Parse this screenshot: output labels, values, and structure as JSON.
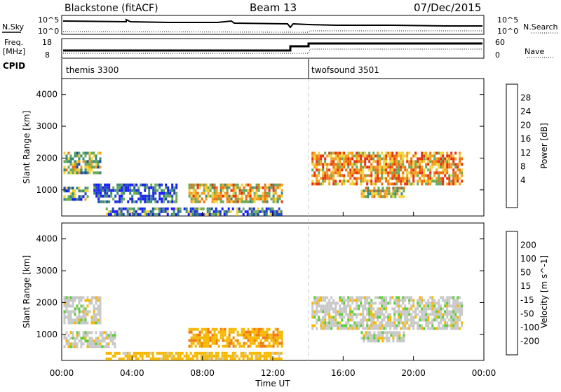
{
  "header": {
    "station": "Blackstone (fitACF)",
    "beam": "Beam 13",
    "date": "07/Dec/2015"
  },
  "summary": {
    "nsky_label": "N.Sky",
    "nsearch_label": "N.Search",
    "left_ticks": [
      "10^5",
      "10^0"
    ],
    "right_ticks": [
      "10^5",
      "10^0"
    ],
    "freq_label_1": "Freq.",
    "freq_label_2": "[MHz]",
    "freq_ticks": [
      "18",
      "8"
    ],
    "nave_label": "Nave",
    "nave_ticks": [
      "60",
      "0"
    ],
    "cpid_label": "CPID",
    "cpid_1": "themis 3300",
    "cpid_2": "twofsound 3501"
  },
  "colors": {
    "power_scale": [
      "#1a1aff",
      "#2048b8",
      "#3a8a7a",
      "#6aaa5a",
      "#f2d43a",
      "#f2a020",
      "#ee7010",
      "#e83010",
      "#d80000"
    ],
    "velocity_scale": [
      "#1a1aff",
      "#2048b8",
      "#3a8a5a",
      "#5ccc3a",
      "#c8c8c8",
      "#f5b800",
      "#f07a10",
      "#e85010",
      "#e00000"
    ]
  },
  "chart_data": [
    {
      "type": "heatmap",
      "title": "Power",
      "ylabel": "Slant Range [km]",
      "xlabel": "Time UT",
      "colorbar_label": "Power [dB]",
      "colorbar_ticks": [
        "28",
        "24",
        "20",
        "16",
        "12",
        "8",
        "4"
      ],
      "x_ticks": [
        "00:00",
        "04:00",
        "08:00",
        "12:00",
        "16:00",
        "20:00",
        "00:00"
      ],
      "y_ticks": [
        "4000",
        "3000",
        "2000",
        "1000"
      ],
      "ylim": [
        180,
        4500
      ],
      "xlim_hours": [
        0,
        24
      ],
      "regions": [
        {
          "t0": 0.1,
          "t1": 2.2,
          "r0": 1500,
          "r1": 2200,
          "value": 14
        },
        {
          "t0": 0.1,
          "t1": 1.5,
          "r0": 700,
          "r1": 1100,
          "value": 10
        },
        {
          "t0": 1.8,
          "t1": 6.5,
          "r0": 600,
          "r1": 1200,
          "value": 6
        },
        {
          "t0": 2.5,
          "t1": 12.5,
          "r0": 200,
          "r1": 450,
          "value": 8
        },
        {
          "t0": 7.2,
          "t1": 12.5,
          "r0": 650,
          "r1": 1200,
          "value": 18
        },
        {
          "t0": 14.2,
          "t1": 22.8,
          "r0": 1200,
          "r1": 2200,
          "value": 20
        },
        {
          "t0": 17.0,
          "t1": 19.5,
          "r0": 800,
          "r1": 1100,
          "value": 16
        }
      ]
    },
    {
      "type": "heatmap",
      "title": "Velocity",
      "ylabel": "Slant Range [km]",
      "xlabel": "Time UT",
      "colorbar_label": "Velocity [m s^-1]",
      "colorbar_ticks": [
        "200",
        "100",
        "50",
        "15",
        "-15",
        "-50",
        "-100",
        "-200"
      ],
      "x_ticks": [
        "00:00",
        "04:00",
        "08:00",
        "12:00",
        "16:00",
        "20:00",
        "00:00"
      ],
      "y_ticks": [
        "4000",
        "3000",
        "2000",
        "1000"
      ],
      "ylim": [
        180,
        4500
      ],
      "xlim_hours": [
        0,
        24
      ],
      "regions": [
        {
          "t0": 0.1,
          "t1": 2.2,
          "r0": 1400,
          "r1": 2200,
          "value": 0
        },
        {
          "t0": 0.1,
          "t1": 3.0,
          "r0": 600,
          "r1": 1100,
          "value": 0
        },
        {
          "t0": 2.5,
          "t1": 12.5,
          "r0": 200,
          "r1": 450,
          "value": -30
        },
        {
          "t0": 7.2,
          "t1": 12.5,
          "r0": 650,
          "r1": 1200,
          "value": -40
        },
        {
          "t0": 14.2,
          "t1": 22.8,
          "r0": 1200,
          "r1": 2200,
          "value": 0
        },
        {
          "t0": 17.0,
          "t1": 19.5,
          "r0": 800,
          "r1": 1100,
          "value": 0
        }
      ]
    }
  ]
}
